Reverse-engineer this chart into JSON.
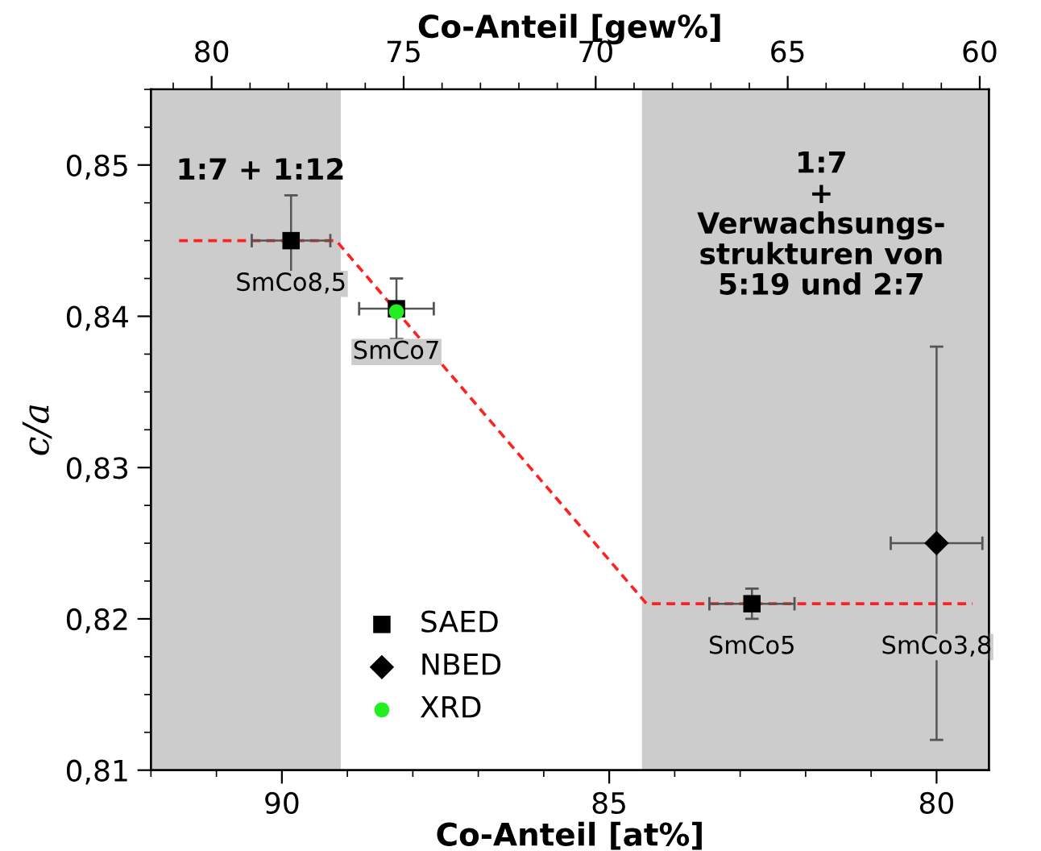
{
  "chart_data": {
    "type": "scatter",
    "xlabel": "Co-Anteil [at%]",
    "x2label": "Co-Anteil [gew%]",
    "ylabel": "c/a",
    "xlim": [
      92,
      79.2
    ],
    "xticks": [
      90,
      85,
      80
    ],
    "x2lim": [
      81.58,
      59.76
    ],
    "x2ticks": [
      80,
      75,
      70,
      65,
      60
    ],
    "ylim": [
      0.81,
      0.855
    ],
    "yticks": [
      {
        "value": 0.81,
        "label": "0,81"
      },
      {
        "value": 0.82,
        "label": "0,82"
      },
      {
        "value": 0.83,
        "label": "0,83"
      },
      {
        "value": 0.84,
        "label": "0,84"
      },
      {
        "value": 0.85,
        "label": "0,85"
      }
    ],
    "series": [
      {
        "type": "line",
        "color": "#ff2020",
        "line_style": "dashed",
        "marker": "none",
        "x": [
          91.57,
          89.17,
          84.43,
          79.45
        ],
        "values": [
          0.845,
          0.845,
          0.821,
          0.821
        ]
      },
      {
        "name": "SAED",
        "color": "#000000",
        "marker": "square",
        "x": [
          89.86,
          88.25,
          82.82
        ],
        "values": [
          0.845,
          0.8405,
          0.821
        ],
        "errors": [
          0.003,
          0.002,
          0.001
        ],
        "xerrors": [
          0.6,
          0.57,
          0.65
        ]
      },
      {
        "name": "NBED",
        "color": "#000000",
        "marker": "diamond",
        "x": [
          80
        ],
        "values": [
          0.825
        ],
        "errors": [
          0.013
        ],
        "xerrors": [
          0.7
        ]
      },
      {
        "name": "XRD",
        "color": "#22ee22",
        "marker": "circle",
        "x": [
          88.25
        ],
        "values": [
          0.8403
        ]
      }
    ],
    "bands": [
      {
        "axis": "x",
        "from": 92,
        "to": 89.1,
        "color": "#cccccc"
      },
      {
        "axis": "x",
        "from": 84.5,
        "to": 79.2,
        "color": "#cccccc"
      }
    ],
    "annotations": [
      "1:7 + 1:12",
      "1:7\n+\nVerwachsungs-\nstrukturen von\n5:19 und 2:7",
      {
        "text": "SmCo8,5",
        "x": 89.86,
        "y": 0.845
      },
      {
        "text": "SmCo7",
        "x": 88.25,
        "y": 0.8405
      },
      {
        "text": "SmCo5",
        "x": 82.82,
        "y": 0.821
      },
      {
        "text": "SmCo3,8",
        "x": 80,
        "y": 0.821
      }
    ],
    "legend": "lower center",
    "grid": false
  }
}
